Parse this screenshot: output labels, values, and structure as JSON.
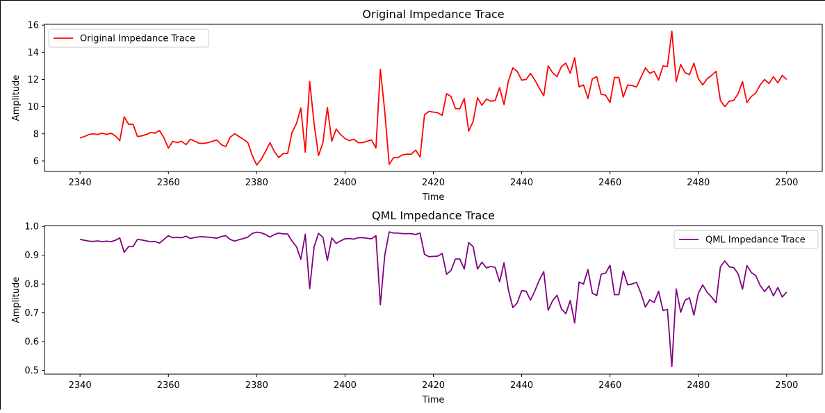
{
  "chart_data": [
    {
      "type": "line",
      "title": "Original Impedance Trace",
      "xlabel": "Time",
      "ylabel": "Amplitude",
      "xlim": [
        2331.95,
        2508.05
      ],
      "ylim": [
        5.23,
        16.06
      ],
      "xticks": [
        2340,
        2360,
        2380,
        2400,
        2420,
        2440,
        2460,
        2480,
        2500
      ],
      "yticks": [
        6,
        8,
        10,
        12,
        14,
        16
      ],
      "grid": false,
      "legend_position": "upper left",
      "series": [
        {
          "name": "Original Impedance Trace",
          "color": "#ff0000",
          "x": [
            2340,
            2341,
            2342,
            2343,
            2344,
            2345,
            2346,
            2347,
            2348,
            2349,
            2350,
            2351,
            2352,
            2353,
            2354,
            2355,
            2356,
            2357,
            2358,
            2359,
            2360,
            2361,
            2362,
            2363,
            2364,
            2365,
            2366,
            2367,
            2368,
            2369,
            2370,
            2371,
            2372,
            2373,
            2374,
            2375,
            2376,
            2377,
            2378,
            2379,
            2380,
            2381,
            2382,
            2383,
            2384,
            2385,
            2386,
            2387,
            2388,
            2389,
            2390,
            2391,
            2392,
            2393,
            2394,
            2395,
            2396,
            2397,
            2398,
            2399,
            2400,
            2401,
            2402,
            2403,
            2404,
            2405,
            2406,
            2407,
            2408,
            2409,
            2410,
            2411,
            2412,
            2413,
            2414,
            2415,
            2416,
            2417,
            2418,
            2419,
            2420,
            2421,
            2422,
            2423,
            2424,
            2425,
            2426,
            2427,
            2428,
            2429,
            2430,
            2431,
            2432,
            2433,
            2434,
            2435,
            2436,
            2437,
            2438,
            2439,
            2440,
            2441,
            2442,
            2443,
            2444,
            2445,
            2446,
            2447,
            2448,
            2449,
            2450,
            2451,
            2452,
            2453,
            2454,
            2455,
            2456,
            2457,
            2458,
            2459,
            2460,
            2461,
            2462,
            2463,
            2464,
            2465,
            2466,
            2467,
            2468,
            2469,
            2470,
            2471,
            2472,
            2473,
            2474,
            2475,
            2476,
            2477,
            2478,
            2479,
            2480,
            2481,
            2482,
            2483,
            2484,
            2485,
            2486,
            2487,
            2488,
            2489,
            2490,
            2491,
            2492,
            2493,
            2494,
            2495,
            2496,
            2497,
            2498,
            2499,
            2500
          ],
          "y": [
            7.7,
            7.8,
            7.95,
            8.0,
            7.95,
            8.05,
            7.95,
            8.05,
            7.85,
            7.5,
            9.25,
            8.7,
            8.7,
            7.8,
            7.85,
            7.95,
            8.1,
            8.05,
            8.25,
            7.7,
            6.95,
            7.45,
            7.35,
            7.45,
            7.2,
            7.6,
            7.45,
            7.3,
            7.3,
            7.35,
            7.45,
            7.55,
            7.2,
            7.05,
            7.75,
            8.0,
            7.8,
            7.6,
            7.35,
            6.4,
            5.7,
            6.1,
            6.7,
            7.35,
            6.7,
            6.25,
            6.55,
            6.55,
            8.1,
            8.75,
            9.9,
            6.65,
            11.85,
            8.75,
            6.4,
            7.35,
            9.95,
            7.45,
            8.35,
            7.95,
            7.65,
            7.5,
            7.6,
            7.35,
            7.35,
            7.45,
            7.55,
            6.95,
            12.75,
            9.65,
            5.75,
            6.25,
            6.25,
            6.45,
            6.5,
            6.5,
            6.8,
            6.3,
            9.4,
            9.65,
            9.6,
            9.55,
            9.35,
            10.95,
            10.75,
            9.85,
            9.85,
            10.6,
            8.2,
            8.9,
            10.65,
            10.1,
            10.55,
            10.4,
            10.45,
            11.4,
            10.15,
            11.9,
            12.85,
            12.6,
            11.95,
            12.0,
            12.45,
            11.95,
            11.35,
            10.8,
            13.0,
            12.5,
            12.2,
            12.95,
            13.2,
            12.45,
            13.6,
            11.45,
            11.6,
            10.6,
            12.05,
            12.2,
            10.9,
            10.85,
            10.3,
            12.15,
            12.15,
            10.7,
            11.6,
            11.55,
            11.45,
            12.15,
            12.85,
            12.45,
            12.6,
            11.95,
            13.0,
            12.95,
            15.55,
            11.85,
            13.1,
            12.5,
            12.35,
            13.2,
            12.05,
            11.6,
            12.05,
            12.3,
            12.6,
            10.45,
            10.0,
            10.4,
            10.45,
            10.95,
            11.85,
            10.3,
            10.75,
            11.0,
            11.6,
            12.0,
            11.7,
            12.2,
            11.75,
            12.3,
            12.0
          ]
        }
      ]
    },
    {
      "type": "line",
      "title": "QML Impedance Trace",
      "xlabel": "Time",
      "ylabel": "Amplitude",
      "xlim": [
        2331.95,
        2508.05
      ],
      "ylim": [
        0.487,
        1.003
      ],
      "xticks": [
        2340,
        2360,
        2380,
        2400,
        2420,
        2440,
        2460,
        2480,
        2500
      ],
      "yticks": [
        0.5,
        0.6,
        0.7,
        0.8,
        0.9,
        1.0
      ],
      "ytick_labels": [
        "0.5",
        "0.6",
        "0.7",
        "0.8",
        "0.9",
        "1.0"
      ],
      "grid": false,
      "legend_position": "upper right",
      "series": [
        {
          "name": "QML Impedance Trace",
          "color": "#800080",
          "x": [
            2340,
            2341,
            2342,
            2343,
            2344,
            2345,
            2346,
            2347,
            2348,
            2349,
            2350,
            2351,
            2352,
            2353,
            2354,
            2355,
            2356,
            2357,
            2358,
            2359,
            2360,
            2361,
            2362,
            2363,
            2364,
            2365,
            2366,
            2367,
            2368,
            2369,
            2370,
            2371,
            2372,
            2373,
            2374,
            2375,
            2376,
            2377,
            2378,
            2379,
            2380,
            2381,
            2382,
            2383,
            2384,
            2385,
            2386,
            2387,
            2388,
            2389,
            2390,
            2391,
            2392,
            2393,
            2394,
            2395,
            2396,
            2397,
            2398,
            2399,
            2400,
            2401,
            2402,
            2403,
            2404,
            2405,
            2406,
            2407,
            2408,
            2409,
            2410,
            2411,
            2412,
            2413,
            2414,
            2415,
            2416,
            2417,
            2418,
            2419,
            2420,
            2421,
            2422,
            2423,
            2424,
            2425,
            2426,
            2427,
            2428,
            2429,
            2430,
            2431,
            2432,
            2433,
            2434,
            2435,
            2436,
            2437,
            2438,
            2439,
            2440,
            2441,
            2442,
            2443,
            2444,
            2445,
            2446,
            2447,
            2448,
            2449,
            2450,
            2451,
            2452,
            2453,
            2454,
            2455,
            2456,
            2457,
            2458,
            2459,
            2460,
            2461,
            2462,
            2463,
            2464,
            2465,
            2466,
            2467,
            2468,
            2469,
            2470,
            2471,
            2472,
            2473,
            2474,
            2475,
            2476,
            2477,
            2478,
            2479,
            2480,
            2481,
            2482,
            2483,
            2484,
            2485,
            2486,
            2487,
            2488,
            2489,
            2490,
            2491,
            2492,
            2493,
            2494,
            2495,
            2496,
            2497,
            2498,
            2499,
            2500
          ],
          "y": [
            0.955,
            0.952,
            0.949,
            0.948,
            0.95,
            0.947,
            0.949,
            0.947,
            0.952,
            0.96,
            0.91,
            0.93,
            0.93,
            0.955,
            0.953,
            0.95,
            0.947,
            0.948,
            0.942,
            0.955,
            0.968,
            0.961,
            0.962,
            0.961,
            0.966,
            0.958,
            0.962,
            0.964,
            0.964,
            0.963,
            0.961,
            0.959,
            0.965,
            0.968,
            0.955,
            0.949,
            0.954,
            0.958,
            0.963,
            0.976,
            0.98,
            0.978,
            0.972,
            0.963,
            0.972,
            0.977,
            0.974,
            0.974,
            0.949,
            0.93,
            0.886,
            0.973,
            0.784,
            0.93,
            0.976,
            0.962,
            0.882,
            0.96,
            0.941,
            0.95,
            0.957,
            0.958,
            0.956,
            0.961,
            0.961,
            0.959,
            0.957,
            0.968,
            0.728,
            0.9,
            0.981,
            0.977,
            0.977,
            0.975,
            0.975,
            0.975,
            0.972,
            0.977,
            0.903,
            0.895,
            0.896,
            0.897,
            0.906,
            0.834,
            0.847,
            0.887,
            0.887,
            0.852,
            0.944,
            0.93,
            0.852,
            0.876,
            0.856,
            0.861,
            0.858,
            0.808,
            0.874,
            0.779,
            0.718,
            0.735,
            0.777,
            0.775,
            0.744,
            0.777,
            0.814,
            0.843,
            0.709,
            0.742,
            0.761,
            0.714,
            0.697,
            0.743,
            0.665,
            0.807,
            0.8,
            0.85,
            0.768,
            0.76,
            0.834,
            0.838,
            0.865,
            0.763,
            0.763,
            0.845,
            0.797,
            0.8,
            0.806,
            0.768,
            0.72,
            0.745,
            0.736,
            0.775,
            0.708,
            0.712,
            0.513,
            0.783,
            0.702,
            0.744,
            0.752,
            0.692,
            0.768,
            0.797,
            0.771,
            0.755,
            0.735,
            0.86,
            0.88,
            0.86,
            0.857,
            0.836,
            0.782,
            0.864,
            0.84,
            0.829,
            0.795,
            0.774,
            0.793,
            0.759,
            0.788,
            0.755,
            0.772
          ]
        }
      ]
    }
  ]
}
